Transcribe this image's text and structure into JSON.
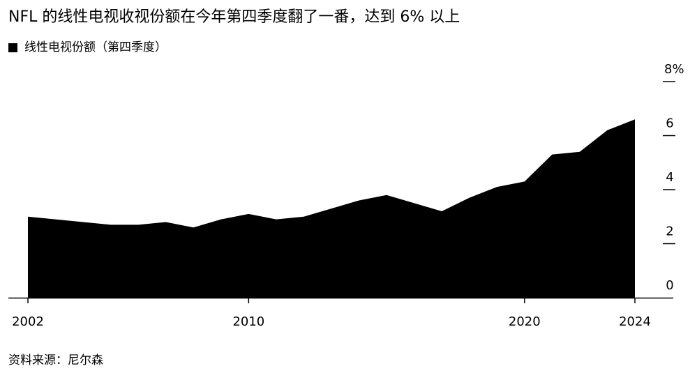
{
  "title": "NFL 的线性电视收视份额在今年第四季度翻了一番，达到 6% 以上",
  "legend": {
    "label": "线性电视份额（第四季度）"
  },
  "source": "资料来源：尼尔森",
  "colors": {
    "area": "#000000",
    "background": "#ffffff",
    "text": "#000000"
  },
  "chart_data": {
    "type": "area",
    "title": "NFL 的线性电视收视份额在今年第四季度翻了一番，达到 6% 以上",
    "series": [
      {
        "name": "线性电视份额（第四季度）",
        "x": [
          2002,
          2003,
          2004,
          2005,
          2006,
          2007,
          2008,
          2009,
          2010,
          2011,
          2012,
          2013,
          2014,
          2015,
          2016,
          2017,
          2018,
          2019,
          2020,
          2021,
          2022,
          2023,
          2024
        ],
        "values": [
          3.0,
          2.9,
          2.8,
          2.7,
          2.7,
          2.8,
          2.6,
          2.9,
          3.1,
          2.9,
          3.0,
          3.3,
          3.6,
          3.8,
          3.5,
          3.2,
          3.7,
          4.1,
          4.3,
          5.3,
          5.4,
          6.2,
          6.6
        ]
      }
    ],
    "xlim": [
      2002,
      2024
    ],
    "ylim": [
      0,
      8
    ],
    "x_ticks": [
      "2002",
      "2010",
      "2020",
      "2024"
    ],
    "x_tick_values": [
      2002,
      2010,
      2020,
      2024
    ],
    "y_ticks": [
      "0",
      "2",
      "4",
      "6",
      "8%"
    ],
    "y_tick_values": [
      0,
      2,
      4,
      6,
      8
    ],
    "y_axis_side": "right",
    "grid": false,
    "legend_position": "top-left"
  }
}
